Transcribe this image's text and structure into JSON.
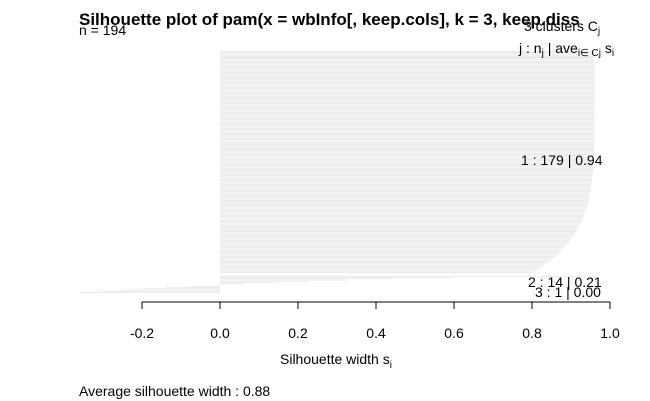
{
  "chart_data": {
    "type": "bar",
    "orientation": "horizontal",
    "title": "Silhouette plot of pam(x = wbInfo[, keep.cols], k = 3, keep.diss",
    "n_label": "n = 194",
    "clusters_label": "3 clusters C",
    "clusters_label_sub": "j",
    "header": {
      "text1": "j :  n",
      "sub1": "j",
      "text2": " | ave",
      "sub2": "i∈ Cj",
      "text3": " s",
      "sub3": "i"
    },
    "xlabel": "Silhouette width s",
    "xlabel_sub": "i",
    "xlim": [
      -0.4,
      1.0
    ],
    "xticks": [
      "-0.2",
      "0.0",
      "0.2",
      "0.4",
      "0.6",
      "0.8",
      "1.0"
    ],
    "tick_values": [
      -0.2,
      0.0,
      0.2,
      0.4,
      0.6,
      0.8,
      1.0
    ],
    "bar_color": "#e6e6e6",
    "clusters": [
      {
        "label": "1 :   179  |  0.94",
        "n": 179,
        "avg": 0.94,
        "max": 0.96,
        "min": 0.8,
        "curve": 6
      },
      {
        "label": "2 :   14  |  0.21",
        "n": 14,
        "avg": 0.21,
        "max": 0.96,
        "min": -0.36,
        "curve": 0.5
      },
      {
        "label": "3 :   1  |  0.00",
        "n": 1,
        "avg": 0.0,
        "max": 0.0,
        "min": 0.0,
        "curve": 1
      }
    ],
    "footer": "Average silhouette width :  0.88"
  }
}
